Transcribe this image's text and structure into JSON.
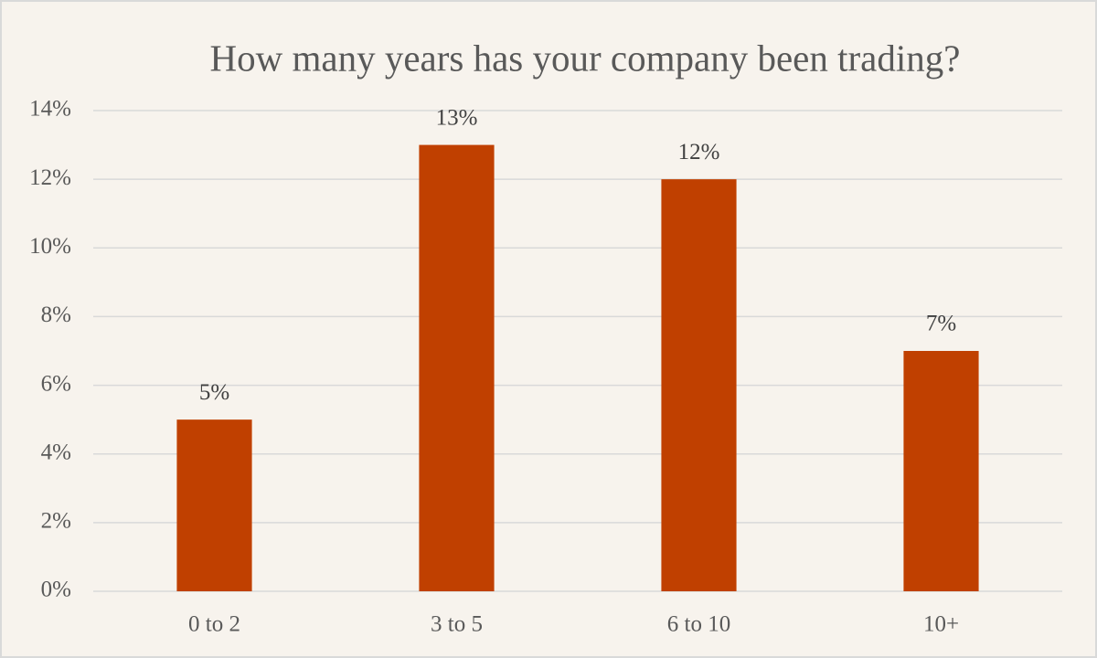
{
  "chart_data": {
    "type": "bar",
    "title": "How many years has your company been trading?",
    "categories": [
      "0 to 2",
      "3 to 5",
      "6 to 10",
      "10+"
    ],
    "values": [
      5,
      13,
      12,
      7
    ],
    "value_labels": [
      "5%",
      "13%",
      "12%",
      "7%"
    ],
    "color": "#c04000",
    "ylim": [
      0,
      14
    ],
    "yticks": [
      {
        "value": 0,
        "label": "0%"
      },
      {
        "value": 2,
        "label": "2%"
      },
      {
        "value": 4,
        "label": "4%"
      },
      {
        "value": 6,
        "label": "6%"
      },
      {
        "value": 8,
        "label": "8%"
      },
      {
        "value": 10,
        "label": "10%"
      },
      {
        "value": 12,
        "label": "12%"
      },
      {
        "value": 14,
        "label": "14%"
      }
    ],
    "grid": true
  }
}
